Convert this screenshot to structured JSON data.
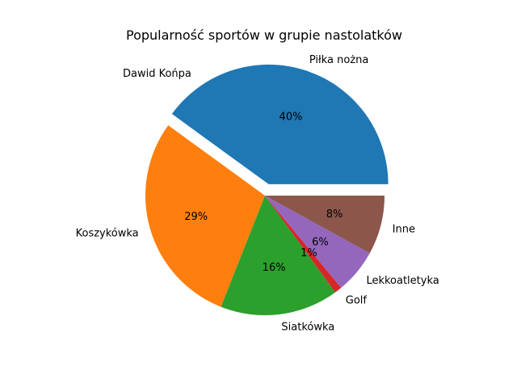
{
  "chart_data": {
    "type": "pie",
    "title": "Popularność sportów w grupie nastolatków",
    "slices": [
      {
        "label": "Piłka nożna",
        "value": 40,
        "pct_label": "40%",
        "color": "#1f77b4",
        "exploded": true
      },
      {
        "label": "Koszykówka",
        "value": 29,
        "pct_label": "29%",
        "color": "#ff7f0e",
        "exploded": false
      },
      {
        "label": "Siatkówka",
        "value": 16,
        "pct_label": "16%",
        "color": "#2ca02c",
        "exploded": false
      },
      {
        "label": "Golf",
        "value": 1,
        "pct_label": "1%",
        "color": "#d62728",
        "exploded": false
      },
      {
        "label": "Lekkoatletyka",
        "value": 6,
        "pct_label": "6%",
        "color": "#9467bd",
        "exploded": false
      },
      {
        "label": "Inne",
        "value": 8,
        "pct_label": "8%",
        "color": "#8c564b",
        "exploded": false
      }
    ],
    "annotations": [
      {
        "text": "Dawid Końpa"
      }
    ]
  }
}
